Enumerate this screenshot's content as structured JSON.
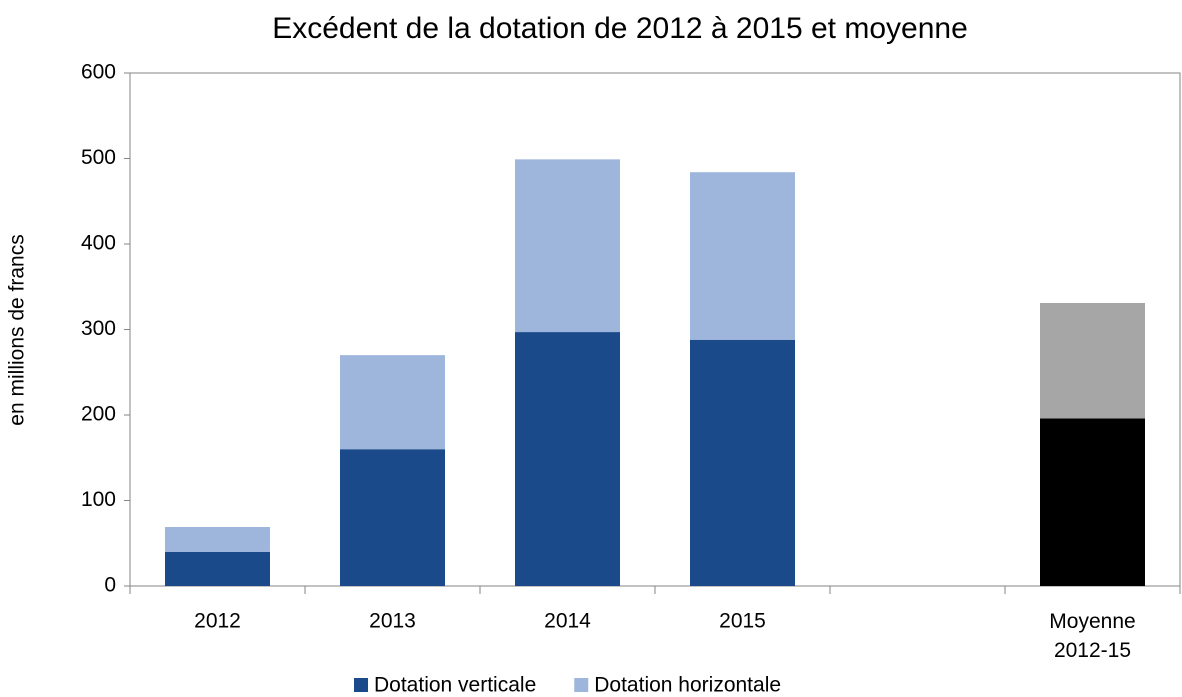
{
  "chart_data": {
    "type": "stacked_bar",
    "title": "Excédent de la dotation de 2012 à 2015 et moyenne",
    "y_label": "en millions de francs",
    "categories": [
      "2012",
      "2013",
      "2014",
      "2015",
      null,
      "Moyenne 2012-15"
    ],
    "series": [
      {
        "name": "Dotation verticale",
        "color": "#1a4a8a",
        "colors": [
          "#1a4a8a",
          "#1a4a8a",
          "#1a4a8a",
          "#1a4a8a",
          null,
          "#000000"
        ],
        "values": [
          40,
          160,
          297,
          288,
          null,
          196
        ]
      },
      {
        "name": "Dotation horizontale",
        "color": "#9fb6dc",
        "colors": [
          "#9fb6dc",
          "#9fb6dc",
          "#9fb6dc",
          "#9fb6dc",
          null,
          "#a6a6a6"
        ],
        "values": [
          29,
          110,
          202,
          196,
          null,
          135
        ]
      }
    ],
    "ylim": [
      0,
      600
    ],
    "yticks": [
      0,
      100,
      200,
      300,
      400,
      500,
      600
    ],
    "grid": false,
    "legend": "bottom"
  }
}
